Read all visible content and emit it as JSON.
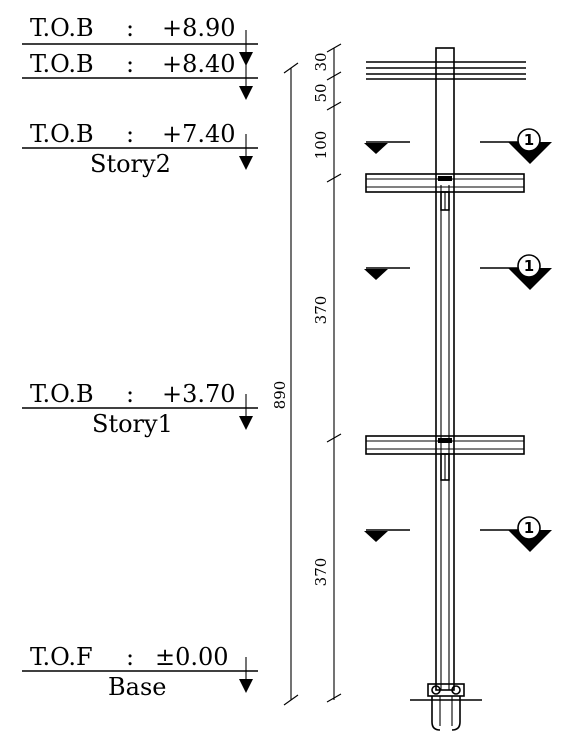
{
  "levels": [
    {
      "tag": "T.O.B",
      "sep": ":",
      "elev": "+8.90",
      "story": ""
    },
    {
      "tag": "T.O.B",
      "sep": ":",
      "elev": "+8.40",
      "story": ""
    },
    {
      "tag": "T.O.B",
      "sep": ":",
      "elev": "+7.40",
      "story": "Story2"
    },
    {
      "tag": "T.O.B",
      "sep": ":",
      "elev": "+3.70",
      "story": "Story1"
    },
    {
      "tag": "T.O.F",
      "sep": ":",
      "elev": "±0.00",
      "story": "Base"
    }
  ],
  "dimensions": {
    "total": "890",
    "segments": [
      "30",
      "50",
      "100",
      "370",
      "370"
    ]
  },
  "section_markers": [
    "1",
    "1",
    "1"
  ],
  "colors": {
    "line": "#000000",
    "background": "#ffffff"
  }
}
